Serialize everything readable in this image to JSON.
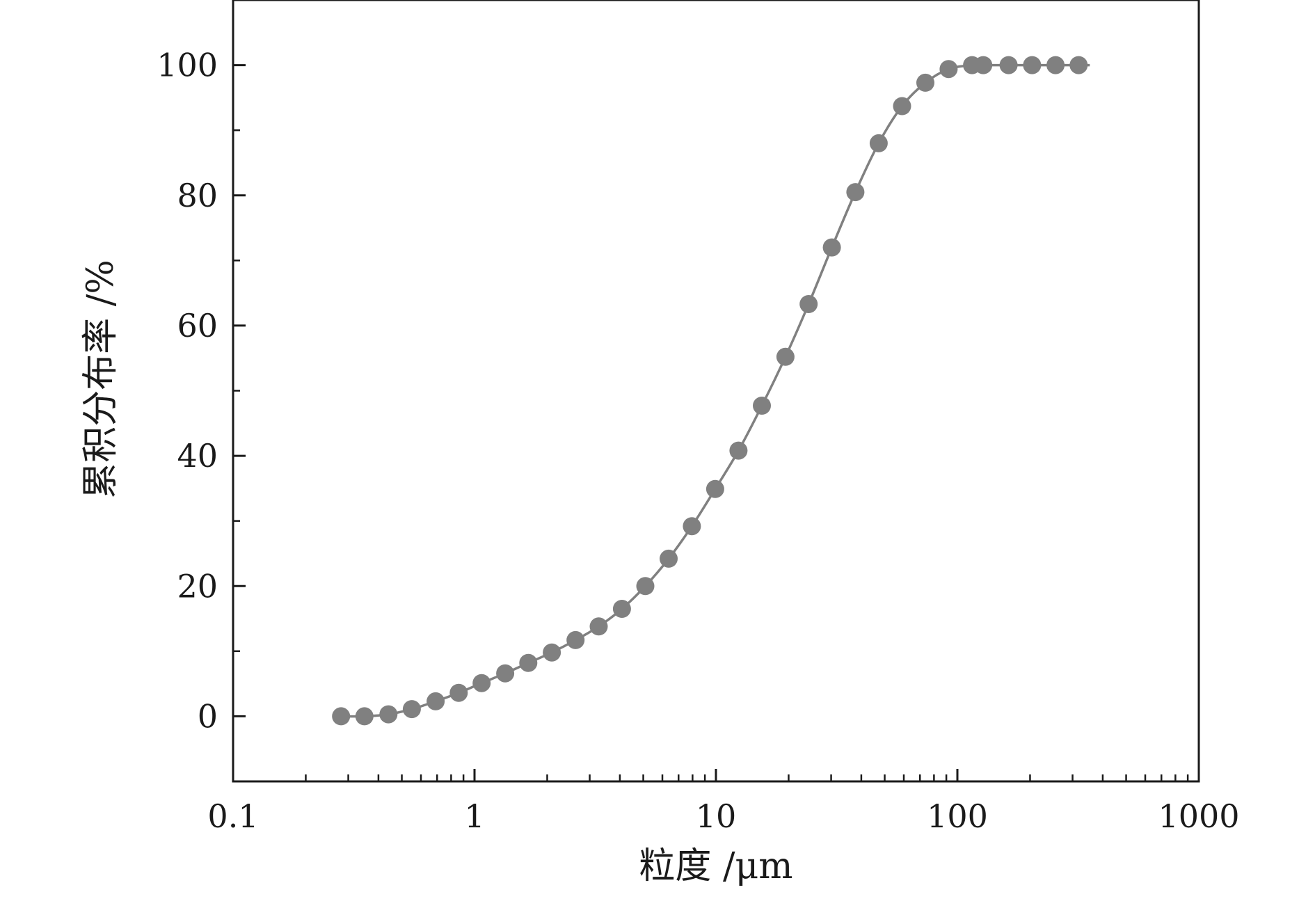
{
  "chart_data": {
    "type": "scatter",
    "title": "",
    "xlabel": "粒度 /μm",
    "ylabel": "累积分布率 /%",
    "xscale": "log",
    "xlim": [
      0.1,
      1000
    ],
    "ylim": [
      -10,
      110
    ],
    "xticks": [
      0.1,
      1,
      10,
      100,
      1000
    ],
    "xtick_labels": [
      "0.1",
      "1",
      "10",
      "100",
      "1000"
    ],
    "yticks": [
      0,
      20,
      40,
      60,
      80,
      100
    ],
    "ytick_labels": [
      "0",
      "20",
      "40",
      "60",
      "80",
      "100"
    ],
    "grid": false,
    "legend": "none",
    "series": [
      {
        "style": "markers+smooth-line",
        "color": "#808080",
        "x": [
          0.28,
          0.35,
          0.44,
          0.55,
          0.69,
          0.86,
          1.07,
          1.34,
          1.67,
          2.09,
          2.62,
          3.27,
          4.08,
          5.1,
          6.37,
          7.95,
          9.93,
          12.4,
          15.5,
          19.4,
          24.2,
          30.2,
          37.8,
          47.2,
          59.0,
          73.7,
          92.0,
          115,
          128,
          163,
          204,
          255,
          318
        ],
        "y": [
          0,
          0,
          0.3,
          1.1,
          2.3,
          3.6,
          5.1,
          6.6,
          8.2,
          9.8,
          11.7,
          13.8,
          16.5,
          20.0,
          24.2,
          29.2,
          34.9,
          40.8,
          47.7,
          55.2,
          63.3,
          72.0,
          80.5,
          88.0,
          93.7,
          97.3,
          99.4,
          100,
          100,
          100,
          100,
          100,
          100
        ]
      }
    ]
  }
}
